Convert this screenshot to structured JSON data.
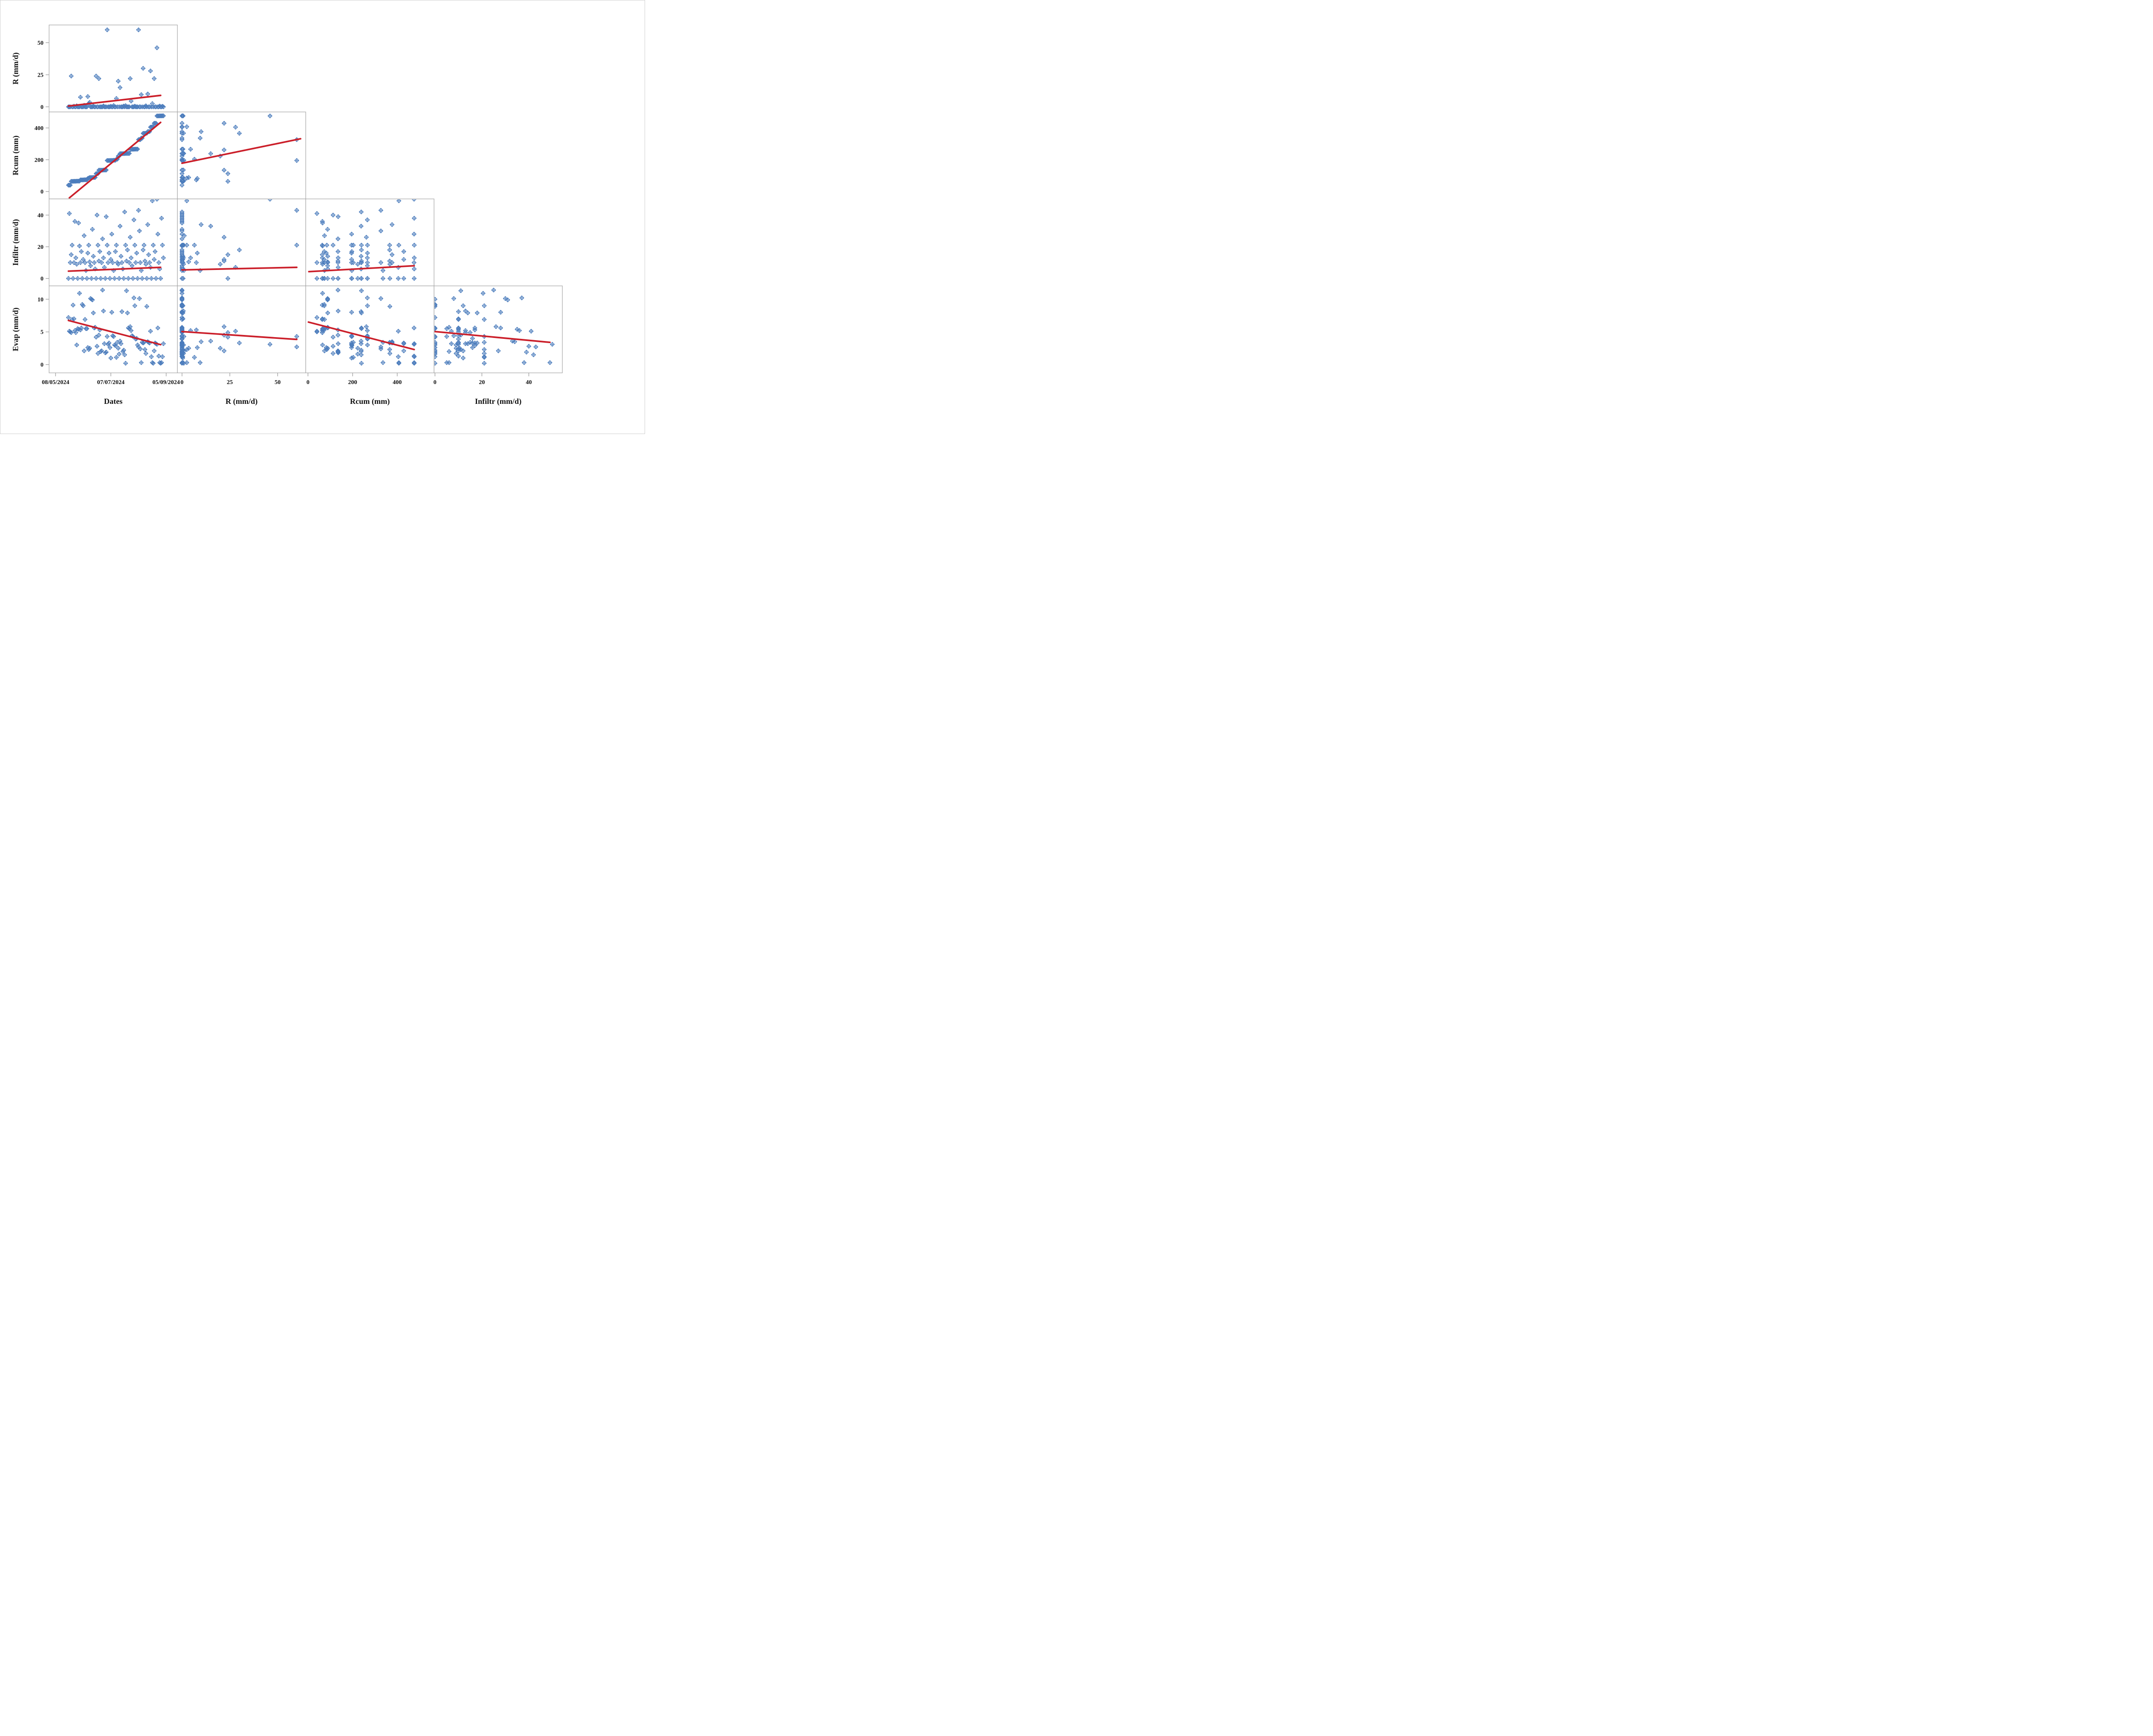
{
  "figure": {
    "background": "#ffffff",
    "outer_border_color": "#cfcfcf"
  },
  "style": {
    "marker_color": "#4b7cbc",
    "trend_color": "#cb1f2a",
    "frame_color": "#a3a3a3",
    "tick_color": "#a3a3a3",
    "text_color": "#111111"
  },
  "chart_data": {
    "type": "scatter",
    "subtype": "scatterplot-matrix-lower-triangle",
    "grid": false,
    "legend": "none",
    "record_fields": [
      "day_index_from_first_date_tick",
      "R_mm_d",
      "Rcum_mm",
      "Infiltr_mm_d",
      "Evap_mm_d"
    ],
    "rows": [
      {
        "label": "R (mm/d)",
        "ticks": [
          0,
          25,
          50
        ],
        "domain": [
          -4.0,
          63.8
        ]
      },
      {
        "label": "Rcum (mm)",
        "ticks": [
          0,
          200,
          400
        ],
        "domain": [
          -46.6,
          500.7
        ]
      },
      {
        "label": "Infiltr (mm/d)",
        "ticks": [
          0,
          20,
          40
        ],
        "domain": [
          -4.7,
          50.2
        ]
      },
      {
        "label": "Evap (mm/d)",
        "ticks": [
          0,
          5,
          10
        ],
        "domain": [
          -1.27,
          12.04
        ]
      }
    ],
    "cols": [
      {
        "label": "Dates",
        "ticks": [
          0,
          60,
          120
        ],
        "tick_labels": [
          "08/05/2024",
          "07/07/2024",
          "05/09/2024"
        ],
        "domain": [
          -7.0,
          132.2
        ]
      },
      {
        "label": "R (mm/d)",
        "ticks": [
          0,
          25,
          50
        ],
        "tick_labels": [
          "0",
          "25",
          "50"
        ],
        "domain": [
          -2.4,
          64.7
        ]
      },
      {
        "label": "Rcum (mm)",
        "ticks": [
          0,
          200,
          400
        ],
        "tick_labels": [
          "0",
          "200",
          "400"
        ],
        "domain": [
          -10.1,
          565.0
        ]
      },
      {
        "label": "Infiltr (mm/d)",
        "ticks": [
          0,
          20,
          40
        ],
        "tick_labels": [
          "0",
          "20",
          "40"
        ],
        "domain": [
          -0.4,
          54.3
        ]
      }
    ],
    "panels": [
      {
        "row": 0,
        "col": 0,
        "trend": [
          14,
          0.6,
          114,
          8.9
        ]
      },
      {
        "row": 1,
        "col": 0,
        "trend": [
          15,
          -40,
          114,
          435
        ]
      },
      {
        "row": 1,
        "col": 1,
        "trend": [
          0,
          178,
          62,
          332
        ]
      },
      {
        "row": 2,
        "col": 0,
        "trend": [
          14,
          4.6,
          114,
          7.0
        ]
      },
      {
        "row": 2,
        "col": 1,
        "trend": [
          0,
          5.4,
          60,
          7.0
        ]
      },
      {
        "row": 2,
        "col": 2,
        "trend": [
          4,
          4.3,
          476,
          8.0
        ]
      },
      {
        "row": 3,
        "col": 0,
        "trend": [
          14,
          6.75,
          114,
          3.05
        ]
      },
      {
        "row": 3,
        "col": 1,
        "trend": [
          0,
          5.05,
          60,
          3.85
        ]
      },
      {
        "row": 3,
        "col": 2,
        "trend": [
          2,
          6.5,
          476,
          2.3
        ]
      },
      {
        "row": 3,
        "col": 3,
        "trend": [
          0,
          5.05,
          49,
          3.4
        ]
      }
    ],
    "records": [
      [
        14,
        0,
        40,
        0,
        7.2
      ],
      [
        15,
        0,
        40,
        41,
        5.1
      ],
      [
        16,
        0,
        40,
        10,
        5.0
      ],
      [
        17,
        24,
        64,
        15,
        4.9
      ],
      [
        18,
        0,
        64,
        21,
        6.9
      ],
      [
        19,
        0,
        64,
        0,
        9.1
      ],
      [
        20,
        0.5,
        64.5,
        10,
        7.0
      ],
      [
        21,
        0,
        64.5,
        36,
        5.2
      ],
      [
        22,
        0,
        64.5,
        13,
        4.9
      ],
      [
        23,
        0.8,
        65.3,
        9,
        3.0
      ],
      [
        24,
        0,
        65.3,
        0,
        5.5
      ],
      [
        25,
        0,
        65.3,
        35,
        5.4
      ],
      [
        26,
        0,
        65.3,
        20.5,
        10.9
      ],
      [
        27,
        7.5,
        72.8,
        10,
        5.3
      ],
      [
        28,
        0,
        72.8,
        17,
        5.6
      ],
      [
        29,
        0,
        72.8,
        0,
        9.2
      ],
      [
        30,
        0,
        72.8,
        12,
        9.0
      ],
      [
        31,
        1.2,
        74.0,
        27,
        2.1
      ],
      [
        32,
        0,
        74.0,
        10,
        6.9
      ],
      [
        33,
        0,
        74.0,
        5,
        5.5
      ],
      [
        34,
        0,
        74.0,
        0,
        5.5
      ],
      [
        35,
        8,
        82.0,
        16,
        2.6
      ],
      [
        36,
        2.5,
        84.5,
        21,
        2.3
      ],
      [
        37,
        3.5,
        88.0,
        10.5,
        2.5
      ],
      [
        38,
        0,
        88.0,
        8,
        10.1
      ],
      [
        39,
        0,
        88.0,
        0,
        10.0
      ],
      [
        40,
        0,
        88.0,
        31,
        9.9
      ],
      [
        41,
        0.5,
        88.5,
        14,
        7.9
      ],
      [
        42,
        0,
        88.5,
        10,
        5.6
      ],
      [
        43,
        0,
        88.5,
        6,
        5.7
      ],
      [
        44,
        24,
        112.5,
        0,
        4.2
      ],
      [
        45,
        0,
        112.5,
        40,
        2.8
      ],
      [
        46,
        0,
        112.5,
        21,
        1.7
      ],
      [
        47,
        22,
        134.5,
        11,
        4.5
      ],
      [
        48,
        0,
        134.5,
        17,
        5.3
      ],
      [
        49,
        0,
        134.5,
        0,
        2.0
      ],
      [
        50,
        0,
        134.5,
        10,
        2.1
      ],
      [
        51,
        0,
        134.5,
        25,
        11.4
      ],
      [
        52,
        0.7,
        135.2,
        13,
        8.2
      ],
      [
        53,
        0,
        135.2,
        7,
        3.2
      ],
      [
        54,
        0,
        135.2,
        0,
        1.8
      ],
      [
        55,
        0,
        135.2,
        39,
        1.9
      ],
      [
        56,
        60,
        195.2,
        21,
        4.3
      ],
      [
        57,
        0,
        195.2,
        10,
        3.1
      ],
      [
        58,
        0,
        195.2,
        16,
        3.3
      ],
      [
        59,
        0,
        195.2,
        0,
        2.6
      ],
      [
        60,
        0.4,
        195.6,
        12,
        1.0
      ],
      [
        61,
        0,
        195.6,
        28,
        8.0
      ],
      [
        62,
        0,
        195.6,
        10,
        4.4
      ],
      [
        63,
        1.0,
        196.6,
        5,
        4.3
      ],
      [
        64,
        0,
        196.6,
        0,
        3.0
      ],
      [
        65,
        0,
        196.6,
        17,
        2.9
      ],
      [
        66,
        6.5,
        203.1,
        21,
        1.1
      ],
      [
        67,
        0,
        203.1,
        10,
        3.4
      ],
      [
        68,
        20,
        223.1,
        9,
        2.5
      ],
      [
        69,
        0,
        223.1,
        0,
        1.6
      ],
      [
        70,
        15,
        238.1,
        33,
        3.6
      ],
      [
        71,
        0,
        238.1,
        14,
        3.2
      ],
      [
        72,
        0,
        238.1,
        10,
        8.1
      ],
      [
        73,
        0,
        238.1,
        6,
        2.0
      ],
      [
        74,
        0.6,
        238.7,
        0,
        2.2
      ],
      [
        75,
        0,
        238.7,
        42,
        1.5
      ],
      [
        76,
        0.9,
        239.6,
        21,
        0.2
      ],
      [
        77,
        0,
        239.6,
        11,
        11.3
      ],
      [
        78,
        0,
        239.6,
        18,
        7.9
      ],
      [
        79,
        0,
        239.6,
        0,
        5.6
      ],
      [
        80,
        0,
        239.6,
        10,
        5.5
      ],
      [
        81,
        22,
        261.6,
        26,
        5.8
      ],
      [
        82,
        4.5,
        266.1,
        13,
        5.2
      ],
      [
        83,
        0,
        266.1,
        8,
        4.4
      ],
      [
        84,
        0,
        266.1,
        0,
        4.3
      ],
      [
        85,
        0,
        266.1,
        37,
        10.2
      ],
      [
        86,
        0.5,
        266.6,
        21,
        9.0
      ],
      [
        87,
        0,
        266.6,
        10,
        3.9
      ],
      [
        88,
        0,
        266.6,
        16,
        4.0
      ],
      [
        89,
        0,
        266.6,
        0,
        3.0
      ],
      [
        90,
        60,
        326.6,
        43,
        2.7
      ],
      [
        91,
        0,
        326.6,
        30,
        10.1
      ],
      [
        92,
        0,
        326.6,
        10,
        2.4
      ],
      [
        93,
        9.5,
        336.1,
        5,
        0.3
      ],
      [
        94,
        0,
        336.1,
        0,
        3.4
      ],
      [
        95,
        30,
        366.1,
        18,
        3.3
      ],
      [
        96,
        0,
        366.1,
        21,
        3.4
      ],
      [
        97,
        0,
        366.1,
        11,
        2.3
      ],
      [
        98,
        0.8,
        366.9,
        9,
        1.7
      ],
      [
        99,
        0,
        366.9,
        0,
        8.9
      ],
      [
        100,
        10,
        376.9,
        34,
        3.5
      ],
      [
        101,
        0,
        376.9,
        15,
        3.4
      ],
      [
        102,
        0,
        376.9,
        10,
        3.3
      ],
      [
        103,
        28,
        404.9,
        7,
        5.1
      ],
      [
        104,
        0,
        404.9,
        0,
        1.2
      ],
      [
        105,
        2.5,
        407.4,
        49,
        0.3
      ],
      [
        106,
        0,
        407.4,
        21,
        0.2
      ],
      [
        107,
        22,
        429.4,
        12,
        2.1
      ],
      [
        108,
        0,
        429.4,
        17,
        3.3
      ],
      [
        109,
        0,
        429.4,
        0,
        3.2
      ],
      [
        110,
        46,
        475.4,
        50,
        3.1
      ],
      [
        111,
        0,
        475.4,
        28,
        5.6
      ],
      [
        112,
        0,
        475.4,
        10,
        1.3
      ],
      [
        113,
        0.6,
        476.0,
        6,
        0.3
      ],
      [
        114,
        0,
        476.0,
        0,
        0.2
      ],
      [
        115,
        0,
        476.0,
        38,
        0.3
      ],
      [
        116,
        0.4,
        476.4,
        21,
        1.2
      ],
      [
        117,
        0,
        476.4,
        13,
        3.2
      ]
    ]
  }
}
